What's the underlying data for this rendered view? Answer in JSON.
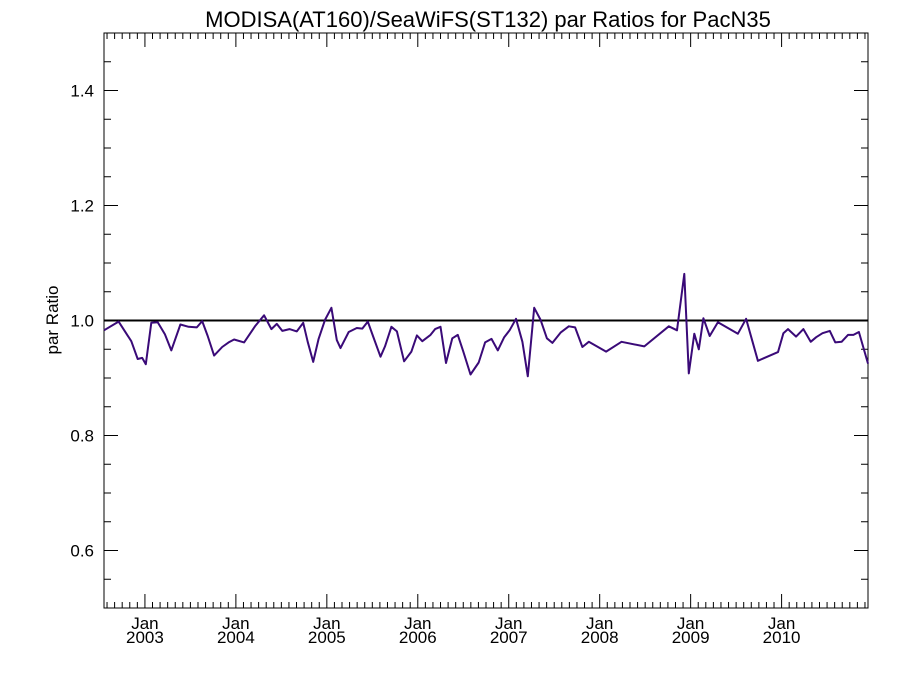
{
  "chart_data": {
    "type": "line",
    "title": "MODISA(AT160)/SeaWiFS(ST132)  par Ratios for PacN35",
    "xlabel": "",
    "ylabel": "par Ratio",
    "xlim": [
      2002.55,
      2010.95
    ],
    "ylim": [
      0.5,
      1.5
    ],
    "y_ticks": [
      {
        "value": 0.6,
        "label": "0.6"
      },
      {
        "value": 0.8,
        "label": "0.8"
      },
      {
        "value": 1.0,
        "label": "1.0"
      },
      {
        "value": 1.2,
        "label": "1.2"
      },
      {
        "value": 1.4,
        "label": "1.4"
      }
    ],
    "x_ticks": [
      {
        "value": 2003.0,
        "month": "Jan",
        "year": "2003"
      },
      {
        "value": 2004.0,
        "month": "Jan",
        "year": "2004"
      },
      {
        "value": 2005.0,
        "month": "Jan",
        "year": "2005"
      },
      {
        "value": 2006.0,
        "month": "Jan",
        "year": "2006"
      },
      {
        "value": 2007.0,
        "month": "Jan",
        "year": "2007"
      },
      {
        "value": 2008.0,
        "month": "Jan",
        "year": "2008"
      },
      {
        "value": 2009.0,
        "month": "Jan",
        "year": "2009"
      },
      {
        "value": 2010.0,
        "month": "Jan",
        "year": "2010"
      }
    ],
    "reference_line": {
      "y": 1.0,
      "color": "#000000"
    },
    "series": [
      {
        "color": "#3a0a78",
        "x": [
          2002.55,
          2002.71,
          2002.85,
          2002.92,
          2002.97,
          2003.01,
          2003.07,
          2003.14,
          2003.22,
          2003.29,
          2003.39,
          2003.48,
          2003.57,
          2003.63,
          2003.69,
          2003.76,
          2003.85,
          2003.92,
          2003.98,
          2004.09,
          2004.21,
          2004.31,
          2004.39,
          2004.45,
          2004.51,
          2004.59,
          2004.67,
          2004.74,
          2004.79,
          2004.85,
          2004.91,
          2004.98,
          2005.05,
          2005.11,
          2005.15,
          2005.24,
          2005.33,
          2005.39,
          2005.45,
          2005.51,
          2005.59,
          2005.64,
          2005.71,
          2005.77,
          2005.85,
          2005.93,
          2005.99,
          2006.05,
          2006.14,
          2006.19,
          2006.25,
          2006.31,
          2006.38,
          2006.44,
          2006.5,
          2006.58,
          2006.67,
          2006.74,
          2006.81,
          2006.88,
          2006.95,
          2007.01,
          2007.08,
          2007.15,
          2007.21,
          2007.28,
          2007.35,
          2007.42,
          2007.48,
          2007.57,
          2007.66,
          2007.73,
          2007.81,
          2007.88,
          2008.07,
          2008.24,
          2008.49,
          2008.76,
          2008.85,
          2008.93,
          2008.98,
          2009.04,
          2009.09,
          2009.14,
          2009.21,
          2009.3,
          2009.52,
          2009.61,
          2009.74,
          2009.96,
          2010.02,
          2010.07,
          2010.16,
          2010.24,
          2010.32,
          2010.38,
          2010.45,
          2010.53,
          2010.59,
          2010.66,
          2010.73,
          2010.79,
          2010.85,
          2010.95
        ],
        "y": [
          0.983,
          0.998,
          0.964,
          0.933,
          0.935,
          0.924,
          0.996,
          0.997,
          0.976,
          0.948,
          0.993,
          0.989,
          0.988,
          0.999,
          0.973,
          0.939,
          0.954,
          0.962,
          0.967,
          0.962,
          0.99,
          1.009,
          0.985,
          0.994,
          0.982,
          0.985,
          0.981,
          0.996,
          0.963,
          0.928,
          0.968,
          1.001,
          1.022,
          0.966,
          0.952,
          0.98,
          0.987,
          0.986,
          0.998,
          0.972,
          0.937,
          0.955,
          0.989,
          0.981,
          0.929,
          0.946,
          0.974,
          0.964,
          0.975,
          0.985,
          0.989,
          0.926,
          0.969,
          0.975,
          0.946,
          0.906,
          0.927,
          0.962,
          0.968,
          0.948,
          0.971,
          0.983,
          1.003,
          0.963,
          0.903,
          1.022,
          1.001,
          0.969,
          0.961,
          0.979,
          0.99,
          0.988,
          0.954,
          0.963,
          0.946,
          0.963,
          0.955,
          0.99,
          0.983,
          1.081,
          0.908,
          0.977,
          0.95,
          1.004,
          0.973,
          0.997,
          0.977,
          1.003,
          0.93,
          0.945,
          0.978,
          0.985,
          0.972,
          0.985,
          0.963,
          0.971,
          0.978,
          0.982,
          0.962,
          0.963,
          0.975,
          0.975,
          0.98,
          0.925
        ]
      }
    ]
  }
}
